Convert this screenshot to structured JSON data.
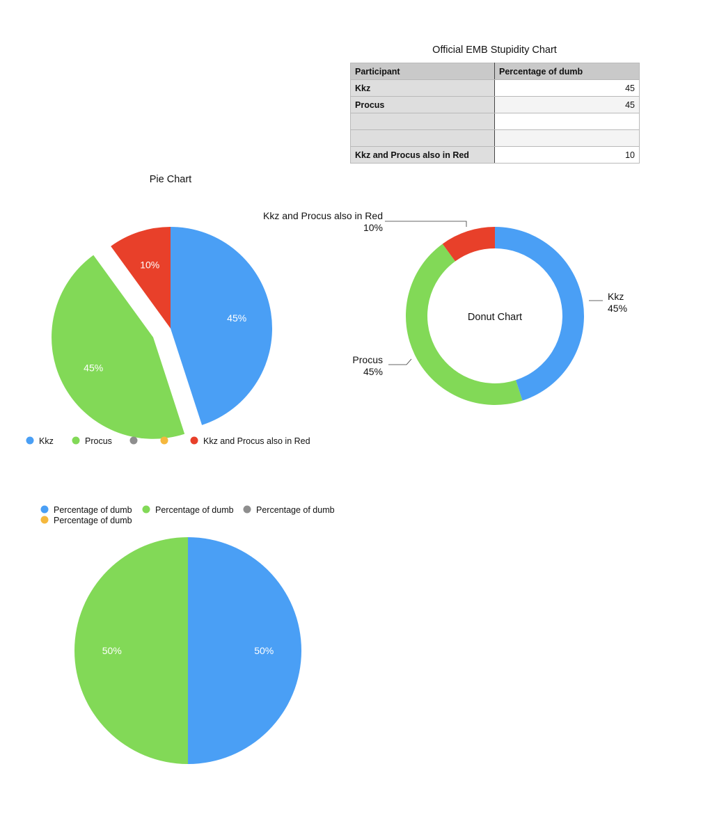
{
  "table": {
    "title": "Official EMB Stupidity Chart",
    "headers": [
      "Participant",
      "Percentage of dumb"
    ],
    "rows": [
      {
        "label": "Kkz",
        "value": "45"
      },
      {
        "label": "Procus",
        "value": "45"
      },
      {
        "label": "",
        "value": ""
      },
      {
        "label": "",
        "value": ""
      },
      {
        "label": "Kkz and Procus also in Red",
        "value": "10"
      }
    ]
  },
  "chart_data": [
    {
      "type": "pie",
      "title": "Pie Chart",
      "categories": [
        "Kkz",
        "Procus",
        "",
        "",
        "Kkz and Procus also in Red"
      ],
      "values": [
        45,
        45,
        0,
        0,
        10
      ],
      "data_labels": [
        "45%",
        "45%",
        "",
        "",
        "10%"
      ],
      "colors": [
        "#4a9ff5",
        "#82d957",
        "#8e8e8e",
        "#f5b83d",
        "#e8402a"
      ],
      "exploded": "Procus",
      "legend_position": "bottom"
    },
    {
      "type": "pie",
      "subtype": "donut",
      "title": "Donut Chart",
      "categories": [
        "Kkz",
        "Procus",
        "Kkz and Procus also in Red"
      ],
      "values": [
        45,
        45,
        10
      ],
      "data_labels": [
        "45%",
        "45%",
        "10%"
      ],
      "colors": [
        "#4a9ff5",
        "#82d957",
        "#e8402a"
      ]
    },
    {
      "type": "pie",
      "categories": [
        "Percentage of dumb",
        "Percentage of dumb",
        "Percentage of dumb",
        "Percentage of dumb"
      ],
      "values": [
        50,
        50,
        0,
        0
      ],
      "data_labels": [
        "50%",
        "50%",
        "",
        ""
      ],
      "colors": [
        "#4a9ff5",
        "#82d957",
        "#8e8e8e",
        "#f5b83d"
      ],
      "legend_position": "top"
    }
  ]
}
